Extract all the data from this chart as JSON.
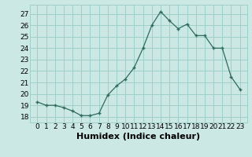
{
  "x": [
    0,
    1,
    2,
    3,
    4,
    5,
    6,
    7,
    8,
    9,
    10,
    11,
    12,
    13,
    14,
    15,
    16,
    17,
    18,
    19,
    20,
    21,
    22,
    23
  ],
  "y": [
    19.3,
    19.0,
    19.0,
    18.8,
    18.5,
    18.1,
    18.1,
    18.3,
    19.9,
    20.7,
    21.3,
    22.3,
    24.0,
    26.0,
    27.2,
    26.4,
    25.7,
    26.1,
    25.1,
    25.1,
    24.0,
    24.0,
    21.5,
    20.4
  ],
  "xlabel": "Humidex (Indice chaleur)",
  "ylim": [
    17.5,
    27.8
  ],
  "yticks": [
    18,
    19,
    20,
    21,
    22,
    23,
    24,
    25,
    26,
    27
  ],
  "xticks": [
    0,
    1,
    2,
    3,
    4,
    5,
    6,
    7,
    8,
    9,
    10,
    11,
    12,
    13,
    14,
    15,
    16,
    17,
    18,
    19,
    20,
    21,
    22,
    23
  ],
  "line_color": "#2e6b5e",
  "marker": "+",
  "bg_color": "#cce8e5",
  "grid_color": "#9ecfca",
  "xlabel_fontsize": 8,
  "tick_fontsize": 6.5
}
